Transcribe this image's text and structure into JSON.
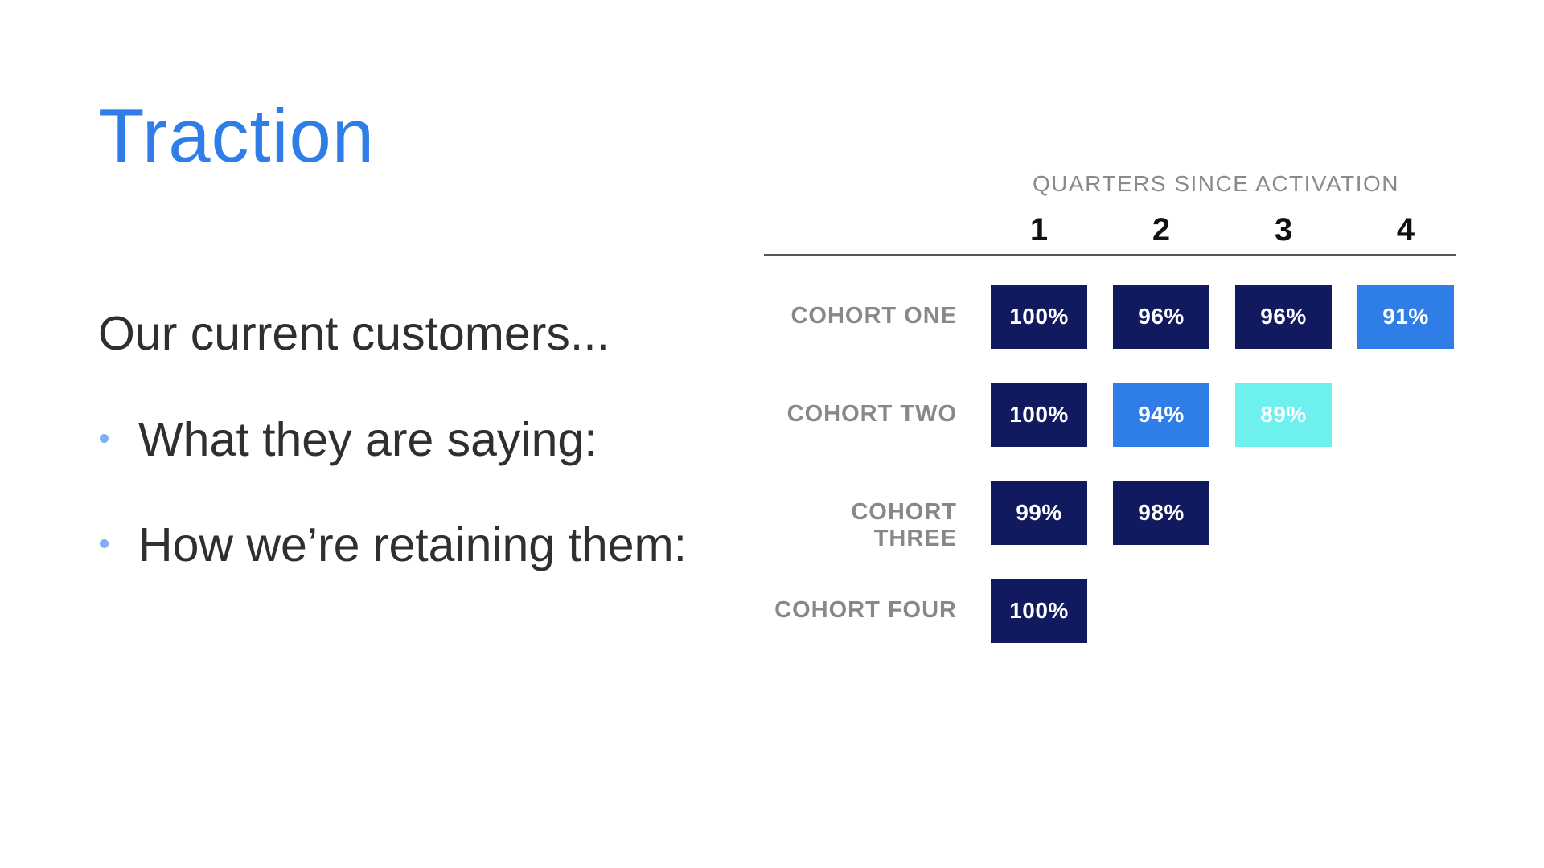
{
  "slide": {
    "title": "Traction",
    "intro": "Our current customers...",
    "bullets": [
      "What they are saying:",
      "How we’re retaining them:"
    ]
  },
  "colors": {
    "title": "#2f7ee8",
    "bullet": "#7fb1f0",
    "dark_cell": "#111a5e",
    "mid_cell": "#2f7ee8",
    "light_cell": "#6ef0ef"
  },
  "table": {
    "axis_title": "QUARTERS SINCE ACTIVATION",
    "quarters": [
      "1",
      "2",
      "3",
      "4"
    ],
    "cohorts": [
      {
        "label": "COHORT ONE",
        "cells": [
          {
            "value": "100%",
            "shade": "dark"
          },
          {
            "value": "96%",
            "shade": "dark"
          },
          {
            "value": "96%",
            "shade": "dark"
          },
          {
            "value": "91%",
            "shade": "mid"
          }
        ]
      },
      {
        "label": "COHORT TWO",
        "cells": [
          {
            "value": "100%",
            "shade": "dark"
          },
          {
            "value": "94%",
            "shade": "mid"
          },
          {
            "value": "89%",
            "shade": "light"
          }
        ]
      },
      {
        "label": "COHORT THREE",
        "cells": [
          {
            "value": "99%",
            "shade": "dark"
          },
          {
            "value": "98%",
            "shade": "dark"
          }
        ]
      },
      {
        "label": "COHORT FOUR",
        "cells": [
          {
            "value": "100%",
            "shade": "dark"
          }
        ]
      }
    ]
  }
}
